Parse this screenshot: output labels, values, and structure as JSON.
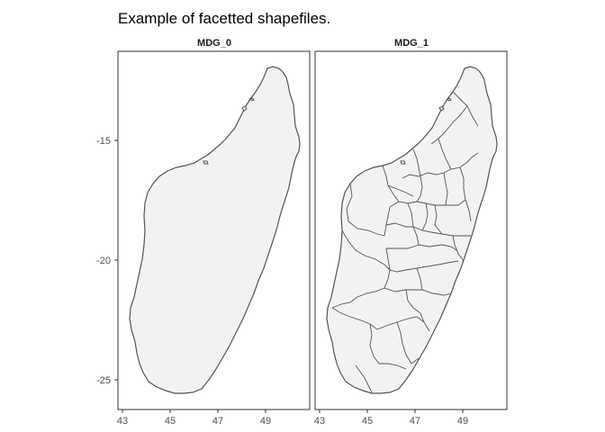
{
  "title": "Example of facetted shapefiles.",
  "facets": [
    {
      "label": "MDG_0"
    },
    {
      "label": "MDG_1"
    }
  ],
  "axes": {
    "x_ticks": [
      "43",
      "45",
      "47",
      "49"
    ],
    "y_ticks": [
      "-15",
      "-20",
      "-25"
    ]
  },
  "colors": {
    "fill": "#f2f2f2",
    "outline": "#555555",
    "panel_border": "#333333",
    "text": "#4d4d4d"
  }
}
